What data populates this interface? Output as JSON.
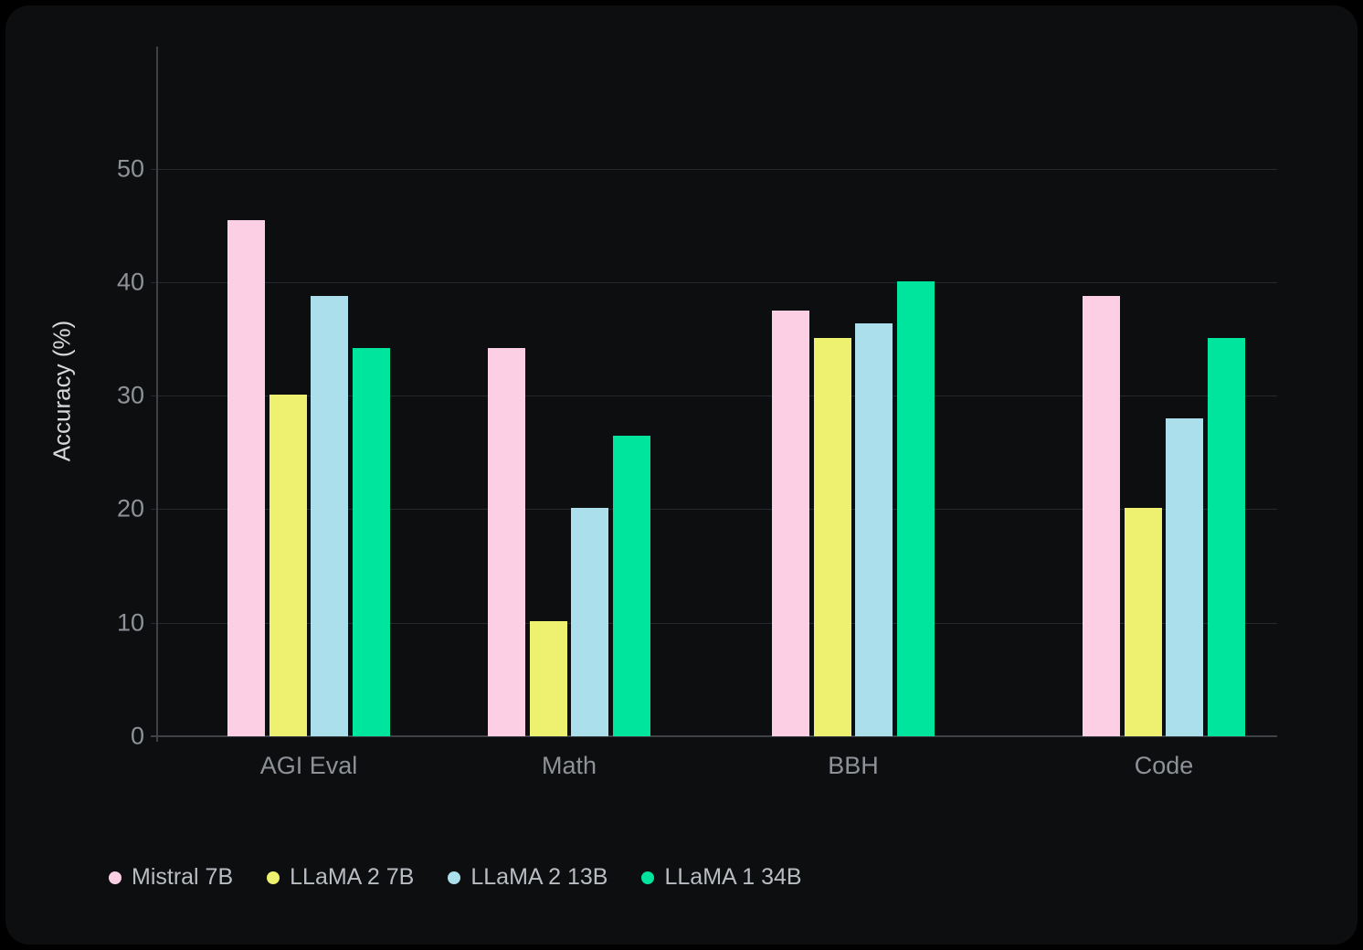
{
  "chart_data": {
    "type": "bar",
    "title": "",
    "ylabel": "Accuracy (%)",
    "xlabel": "",
    "categories": [
      "AGI Eval",
      "Math",
      "BBH",
      "Code"
    ],
    "series": [
      {
        "name": "Mistral 7B",
        "color": "#fccfe4",
        "values": [
          45.5,
          34.2,
          37.5,
          38.8
        ]
      },
      {
        "name": "LLaMA 2 7B",
        "color": "#eef06f",
        "values": [
          30.1,
          10.1,
          35.1,
          20.1
        ]
      },
      {
        "name": "LLaMA 2 13B",
        "color": "#abdfeb",
        "values": [
          38.8,
          20.1,
          36.4,
          28.0
        ]
      },
      {
        "name": "LLaMA 1 34B",
        "color": "#00e59d",
        "values": [
          34.2,
          26.5,
          40.1,
          35.1
        ]
      }
    ],
    "yticks": [
      0,
      10,
      20,
      30,
      40,
      50
    ],
    "ylim": [
      0,
      60.5
    ],
    "grid": true,
    "legend_position": "bottom",
    "colors": {
      "card_background": "#0d0e0f",
      "page_background": "#000000",
      "gridline": "#26292c",
      "axis_line": "#3e4247",
      "tick_text": "#8e9298",
      "axis_title_text": "#d6d8da",
      "legend_text": "#b9bdc3"
    }
  }
}
